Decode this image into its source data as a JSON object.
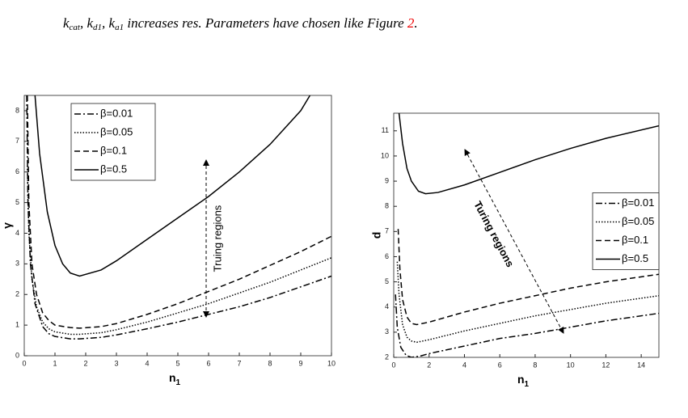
{
  "caption": [
    "k",
    "cat",
    ", k",
    "d1",
    ", k",
    "a1",
    " increases res. Parameters have chosen like Figure ",
    "2",
    "."
  ],
  "chart_data": [
    {
      "type": "line",
      "xlabel": "n",
      "xlabel_subscript": "1",
      "ylabel": "γ",
      "annotation": "Truing regions",
      "legend": "upper left",
      "xlim": [
        0,
        10
      ],
      "ylim": [
        0,
        8.5
      ],
      "xticks": [
        0,
        1,
        2,
        3,
        4,
        5,
        6,
        7,
        8,
        9,
        10
      ],
      "yticks": [
        0,
        1,
        2,
        3,
        4,
        5,
        6,
        7,
        8
      ],
      "series": [
        {
          "name": "β=0.01",
          "color": "#000000",
          "dash": "dashdot",
          "x": [
            0.08,
            0.12,
            0.2,
            0.35,
            0.6,
            0.8,
            1,
            1.5,
            1.8,
            2.5,
            3,
            4,
            5,
            6,
            7,
            8,
            9,
            10
          ],
          "values": [
            8.5,
            5,
            3,
            1.7,
            0.95,
            0.72,
            0.63,
            0.55,
            0.55,
            0.6,
            0.68,
            0.88,
            1.1,
            1.35,
            1.6,
            1.9,
            2.25,
            2.6
          ]
        },
        {
          "name": "β=0.05",
          "color": "#000000",
          "dash": "dotted",
          "x": [
            0.1,
            0.15,
            0.25,
            0.4,
            0.6,
            0.8,
            1,
            1.5,
            1.8,
            2.5,
            3,
            4,
            5,
            6,
            7,
            8,
            9,
            10
          ],
          "values": [
            6.2,
            4,
            2.5,
            1.6,
            1.1,
            0.88,
            0.78,
            0.7,
            0.7,
            0.75,
            0.85,
            1.1,
            1.4,
            1.7,
            2.05,
            2.4,
            2.8,
            3.2
          ]
        },
        {
          "name": "β=0.1",
          "color": "#000000",
          "dash": "dashed",
          "x": [
            0.1,
            0.15,
            0.25,
            0.4,
            0.6,
            0.8,
            1,
            1.5,
            1.8,
            2.5,
            3,
            4,
            5,
            6,
            7,
            8,
            9,
            10
          ],
          "values": [
            8.5,
            5,
            3,
            2,
            1.4,
            1.15,
            1,
            0.92,
            0.9,
            0.95,
            1.05,
            1.35,
            1.7,
            2.1,
            2.5,
            2.95,
            3.4,
            3.9
          ]
        },
        {
          "name": "β=0.5",
          "color": "#000000",
          "dash": "solid",
          "x": [
            0.35,
            0.5,
            0.75,
            1,
            1.25,
            1.5,
            1.8,
            2.5,
            3,
            4,
            5,
            6,
            7,
            8,
            9,
            9.3
          ],
          "values": [
            8.5,
            6.6,
            4.7,
            3.6,
            3,
            2.7,
            2.6,
            2.8,
            3.1,
            3.8,
            4.5,
            5.2,
            6,
            6.9,
            8,
            8.5
          ]
        }
      ]
    },
    {
      "type": "line",
      "xlabel": "n",
      "xlabel_subscript": "1",
      "ylabel": "d",
      "annotation": "Turing regions",
      "legend": "center right",
      "xlim": [
        0,
        15
      ],
      "ylim": [
        2,
        11.7
      ],
      "xticks": [
        0,
        2,
        4,
        6,
        8,
        10,
        12,
        14
      ],
      "yticks": [
        2,
        3,
        4,
        5,
        6,
        7,
        8,
        9,
        10,
        11
      ],
      "series": [
        {
          "name": "β=0.01",
          "color": "#000000",
          "dash": "dashdot",
          "x": [
            0.1,
            0.2,
            0.4,
            0.7,
            1,
            1.5,
            2,
            4,
            6,
            8,
            10,
            12,
            15
          ],
          "values": [
            4.5,
            3.2,
            2.4,
            2.08,
            2,
            2.05,
            2.15,
            2.45,
            2.75,
            2.95,
            3.2,
            3.45,
            3.75
          ]
        },
        {
          "name": "β=0.05",
          "color": "#000000",
          "dash": "dotted",
          "x": [
            0.2,
            0.3,
            0.5,
            0.75,
            1,
            1.3,
            2,
            4,
            6,
            8,
            10,
            12,
            15
          ],
          "values": [
            5.8,
            4.5,
            3.3,
            2.8,
            2.65,
            2.6,
            2.7,
            3.05,
            3.35,
            3.65,
            3.9,
            4.15,
            4.45
          ]
        },
        {
          "name": "β=0.1",
          "color": "#000000",
          "dash": "dashed",
          "x": [
            0.25,
            0.35,
            0.5,
            0.75,
            1,
            1.3,
            2,
            4,
            6,
            8,
            10,
            12,
            15
          ],
          "values": [
            7.1,
            5.5,
            4.3,
            3.6,
            3.35,
            3.3,
            3.4,
            3.8,
            4.15,
            4.45,
            4.75,
            5,
            5.3
          ]
        },
        {
          "name": "β=0.5",
          "color": "#000000",
          "dash": "solid",
          "x": [
            0.3,
            0.5,
            0.75,
            1,
            1.4,
            1.8,
            2.5,
            4,
            6,
            8,
            10,
            12,
            15
          ],
          "values": [
            11.7,
            10.5,
            9.5,
            9,
            8.6,
            8.5,
            8.55,
            8.85,
            9.35,
            9.85,
            10.3,
            10.7,
            11.2
          ]
        }
      ]
    }
  ]
}
